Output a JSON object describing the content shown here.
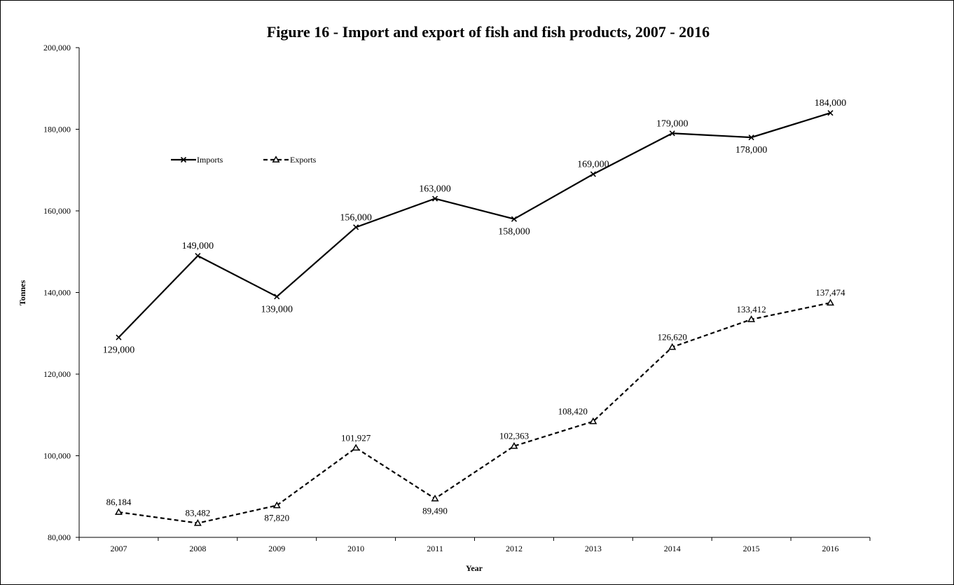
{
  "chart_data": {
    "type": "line",
    "title": "Figure 16 - Import and export of fish and fish products, 2007 - 2016",
    "xlabel": "Year",
    "ylabel": "Tonnes",
    "ylim": [
      80000,
      200000
    ],
    "yticks": [
      80000,
      100000,
      120000,
      140000,
      160000,
      180000,
      200000
    ],
    "ytick_labels": [
      "80,000",
      "100,000",
      "120,000",
      "140,000",
      "160,000",
      "180,000",
      "200,000"
    ],
    "categories": [
      "2007",
      "2008",
      "2009",
      "2010",
      "2011",
      "2012",
      "2013",
      "2014",
      "2015",
      "2016"
    ],
    "grid": false,
    "legend_position": "upper-left inside plot",
    "series": [
      {
        "name": "Imports",
        "marker": "x",
        "line_style": "solid",
        "color": "#000000",
        "values": [
          129000,
          149000,
          139000,
          156000,
          163000,
          158000,
          169000,
          179000,
          178000,
          184000
        ],
        "labels": [
          "129,000",
          "149,000",
          "139,000",
          "156,000",
          "163,000",
          "158,000",
          "169,000",
          "179,000",
          "178,000",
          "184,000"
        ],
        "label_positions": [
          "below",
          "above",
          "below",
          "above",
          "above",
          "below",
          "above",
          "above",
          "below",
          "above"
        ]
      },
      {
        "name": "Exports",
        "marker": "triangle",
        "line_style": "dashed",
        "color": "#000000",
        "values": [
          86184,
          83482,
          87820,
          101927,
          89490,
          102363,
          108420,
          126620,
          133412,
          137474
        ],
        "labels": [
          "86,184",
          "83,482",
          "87,820",
          "101,927",
          "89,490",
          "102,363",
          "108,420",
          "126,620",
          "133,412",
          "137,474"
        ],
        "label_positions": [
          "above",
          "above",
          "below",
          "above",
          "below",
          "above",
          "above-left",
          "above",
          "above",
          "above"
        ]
      }
    ]
  }
}
